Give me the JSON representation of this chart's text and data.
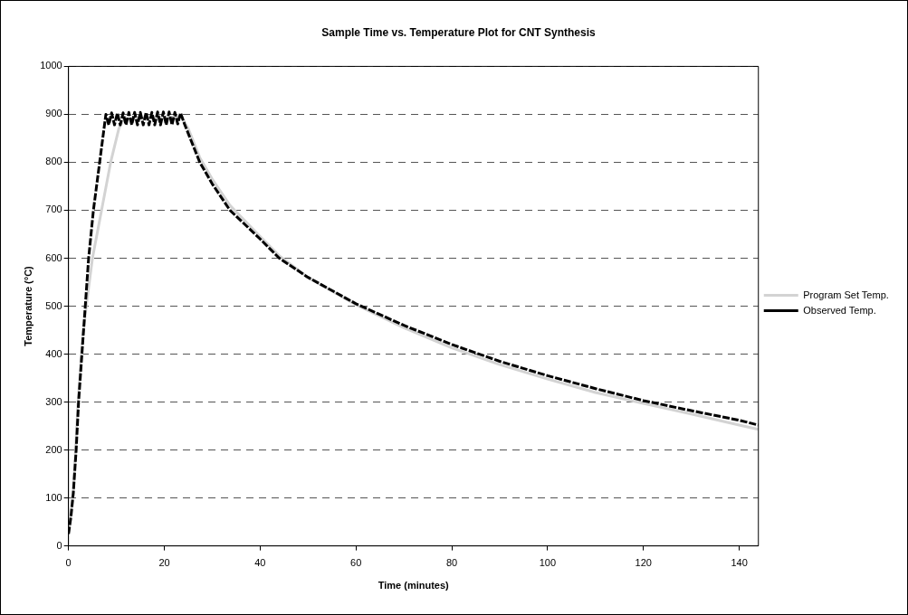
{
  "chart_data": {
    "type": "line",
    "title": "Sample Time vs. Temperature Plot for CNT Synthesis",
    "xlabel": "Time (minutes)",
    "ylabel": "Temperature (°C)",
    "xlim": [
      0,
      144
    ],
    "xticks": [
      0,
      20,
      40,
      60,
      80,
      100,
      120,
      140
    ],
    "ylim": [
      0,
      1000
    ],
    "yticks": [
      0,
      100,
      200,
      300,
      400,
      500,
      600,
      700,
      800,
      900,
      1000
    ],
    "grid": "y",
    "legend": "right",
    "marker": "none",
    "series": [
      {
        "name": "Program Set Temp.",
        "color": "#d3d3d3",
        "line_style": "solid",
        "x": [
          0,
          1,
          2,
          3,
          3.7,
          5,
          6.9,
          8.8,
          10.5,
          11.5,
          23.6,
          25,
          27.4,
          30,
          33.7,
          40,
          44,
          50,
          60,
          70,
          80,
          90,
          100,
          110,
          120,
          130,
          140,
          144
        ],
        "values": [
          25,
          110,
          300,
          440,
          500,
          600,
          700,
          800,
          870,
          890,
          895,
          870,
          810,
          765,
          710,
          645,
          605,
          560,
          503,
          455,
          413,
          378,
          348,
          320,
          297,
          275,
          252,
          243
        ]
      },
      {
        "name": "Observed Temp.",
        "color": "#000000",
        "line_style": "dashed",
        "x": [
          0,
          0.5,
          1,
          1.6,
          2.1,
          2.8,
          3.5,
          4.2,
          5.2,
          6.5,
          7.8,
          8.4,
          9.0,
          9.6,
          10.2,
          10.8,
          11.4,
          12.0,
          12.6,
          13.2,
          13.8,
          14.4,
          15.0,
          15.6,
          16.2,
          16.8,
          17.4,
          18.0,
          18.6,
          19.2,
          19.8,
          20.4,
          21.0,
          21.6,
          22.2,
          22.8,
          23.4,
          24.2,
          25,
          27.4,
          30,
          33.7,
          40,
          44,
          50,
          60,
          70,
          80,
          90,
          100,
          110,
          120,
          130,
          140,
          144
        ],
        "values": [
          25,
          60,
          110,
          200,
          300,
          400,
          500,
          600,
          700,
          800,
          900,
          878,
          903,
          878,
          903,
          878,
          903,
          878,
          904,
          878,
          904,
          878,
          904,
          878,
          904,
          878,
          904,
          878,
          905,
          878,
          905,
          878,
          905,
          878,
          904,
          880,
          903,
          880,
          860,
          800,
          755,
          700,
          640,
          600,
          560,
          505,
          460,
          420,
          385,
          355,
          328,
          303,
          282,
          262,
          252
        ]
      }
    ]
  }
}
